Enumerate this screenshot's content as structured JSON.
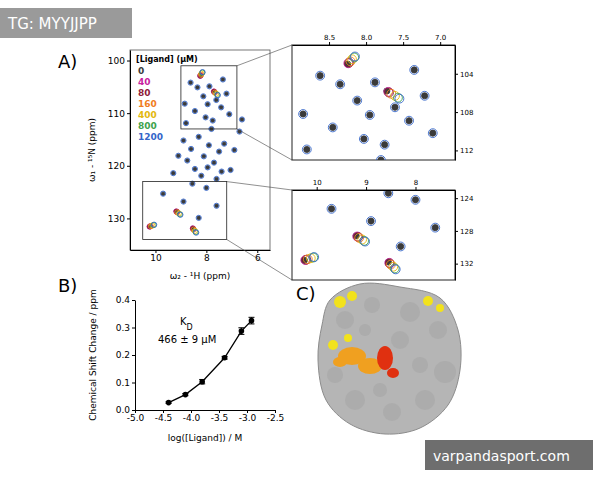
{
  "watermarks": [
    "TG: MYYJJPP",
    "varpandasport.com"
  ],
  "panel_labels": [
    "A)",
    "B)",
    "C)"
  ],
  "chart_data": [
    {
      "type": "scatter",
      "x_label": "ω₂ - ¹H (ppm)",
      "y_label": "ω₁ - ¹⁵N (ppm)",
      "xlim": [
        11,
        5.5
      ],
      "ylim": [
        98,
        136
      ],
      "xticks": [
        10,
        8,
        6
      ],
      "yticks": [
        100,
        110,
        120,
        130
      ],
      "grid": false,
      "legend": "upper left",
      "legend_title": "[Ligand] (μM)",
      "marker": "circle",
      "series": [
        {
          "name": "0",
          "color": "#3a3a3a",
          "x": [
            8.62,
            8.35,
            8.12,
            7.88,
            7.61,
            7.42,
            7.21,
            8.45,
            8.03,
            7.75,
            7.1,
            8.8,
            7.95,
            7.35,
            8.9,
            8.6,
            8.3,
            8.1,
            7.9,
            7.7,
            7.5,
            7.3,
            8.45,
            8.2,
            7.95,
            7.6,
            7.4,
            8.75,
            9.1,
            6.9,
            6.7,
            7.05,
            8.55,
            8.0,
            7.8,
            9.3,
            6.6,
            8.85,
            9.7,
            8.9,
            7.6,
            8.3,
            10.25,
            9.2,
            8.55,
            7.72,
            8.25
          ],
          "values": [
            104.2,
            105.1,
            106.8,
            104.9,
            107.5,
            108.9,
            106.3,
            109.6,
            110.8,
            111.4,
            110.2,
            111.9,
            108.3,
            103.6,
            115.2,
            116.8,
            114.5,
            118.2,
            116.1,
            119.4,
            117.3,
            115.8,
            120.6,
            121.9,
            120.3,
            122.5,
            121.1,
            119.0,
            118.1,
            117.0,
            113.5,
            120.8,
            123.4,
            124.2,
            113.0,
            121.4,
            111.2,
            108.2,
            125.3,
            126.8,
            127.6,
            129.9,
            131.6,
            128.6,
            131.8,
            105.8,
            103.0
          ]
        },
        {
          "name": "40",
          "color": "#c81fa0",
          "x": [
            10.23,
            9.18,
            8.53,
            7.7,
            8.24
          ],
          "values": [
            131.56,
            128.68,
            131.9,
            105.89,
            102.91
          ]
        },
        {
          "name": "80",
          "color": "#8e1b3a",
          "x": [
            10.21,
            9.16,
            8.52,
            7.69,
            8.23
          ],
          "values": [
            131.52,
            128.74,
            131.98,
            105.96,
            102.84
          ]
        },
        {
          "name": "160",
          "color": "#f07d1e",
          "x": [
            10.18,
            9.14,
            8.5,
            7.66,
            8.21
          ],
          "values": [
            131.46,
            128.85,
            132.12,
            106.09,
            102.71
          ]
        },
        {
          "name": "400",
          "color": "#e3b80e",
          "x": [
            10.12,
            9.08,
            8.45,
            7.61,
            8.19
          ],
          "values": [
            131.34,
            129.05,
            132.38,
            106.31,
            102.49
          ]
        },
        {
          "name": "800",
          "color": "#3fa34d",
          "x": [
            10.07,
            9.04,
            8.42,
            7.57,
            8.16
          ],
          "values": [
            131.25,
            129.22,
            132.59,
            106.5,
            102.3
          ]
        },
        {
          "name": "1200",
          "color": "#3566c9",
          "x": [
            8.62,
            8.35,
            8.12,
            7.88,
            7.61,
            7.42,
            7.21,
            8.45,
            8.03,
            7.75,
            7.1,
            8.8,
            7.95,
            7.35,
            8.9,
            8.6,
            8.3,
            8.1,
            7.9,
            7.7,
            7.5,
            7.3,
            8.45,
            8.2,
            7.95,
            7.6,
            7.4,
            8.75,
            9.1,
            6.9,
            6.7,
            7.05,
            8.55,
            8.0,
            7.8,
            9.3,
            6.6,
            8.85,
            9.7,
            8.9,
            7.6,
            8.3,
            10.05,
            9.02,
            8.4,
            7.55,
            8.15
          ],
          "values": [
            104.2,
            105.1,
            106.8,
            104.9,
            107.5,
            108.9,
            106.3,
            109.6,
            110.8,
            111.4,
            110.2,
            111.9,
            108.3,
            103.6,
            115.2,
            116.8,
            114.5,
            118.2,
            116.1,
            119.4,
            117.3,
            115.8,
            120.6,
            121.9,
            120.3,
            122.5,
            121.1,
            119.0,
            118.1,
            117.0,
            113.5,
            120.8,
            123.4,
            124.2,
            113.0,
            121.4,
            111.2,
            108.2,
            125.3,
            126.8,
            127.6,
            129.9,
            131.2,
            129.3,
            132.7,
            106.6,
            102.2
          ]
        }
      ],
      "insets": [
        {
          "xlim": [
            9,
            6.8
          ],
          "ylim": [
            101,
            113
          ],
          "xticks": [
            8.5,
            {
              "value": 8,
              "label": "8.0"
            },
            7.5,
            {
              "value": 7,
              "label": "7.0"
            }
          ],
          "yticks": [
            104,
            108,
            112
          ]
        },
        {
          "xlim": [
            10.5,
            7.2
          ],
          "ylim": [
            123,
            134
          ],
          "xticks": [
            10,
            9,
            8
          ],
          "yticks": [
            124,
            128,
            132
          ]
        }
      ]
    },
    {
      "type": "line",
      "x_label": "log([Ligand]) / M",
      "y_label": "Chemical Shift Change / ppm",
      "x": [
        -4.4,
        -4.1,
        -3.8,
        -3.4,
        -3.1,
        -2.92
      ],
      "values": [
        0.027,
        0.056,
        0.103,
        0.19,
        0.287,
        0.325
      ],
      "errors": [
        0.003,
        0.004,
        0.008,
        0.005,
        0.012,
        0.012
      ],
      "xlim": [
        -5,
        -2.5
      ],
      "xticks": [
        {
          "value": -5,
          "label": "-5.0"
        },
        -4.5,
        {
          "value": -4,
          "label": "-4.0"
        },
        -3.5,
        {
          "value": -3,
          "label": "-3.0"
        },
        -2.5
      ],
      "ylim": [
        0,
        0.4
      ],
      "yticks": [
        {
          "value": 0,
          "label": "0.0"
        },
        0.1,
        0.2,
        0.3,
        0.4
      ],
      "grid": false,
      "color": "#000000",
      "marker": "circle",
      "annotations": [
        {
          "text": "K",
          "subscript": "D"
        },
        {
          "text": "466 ± 9 μM"
        }
      ]
    }
  ]
}
